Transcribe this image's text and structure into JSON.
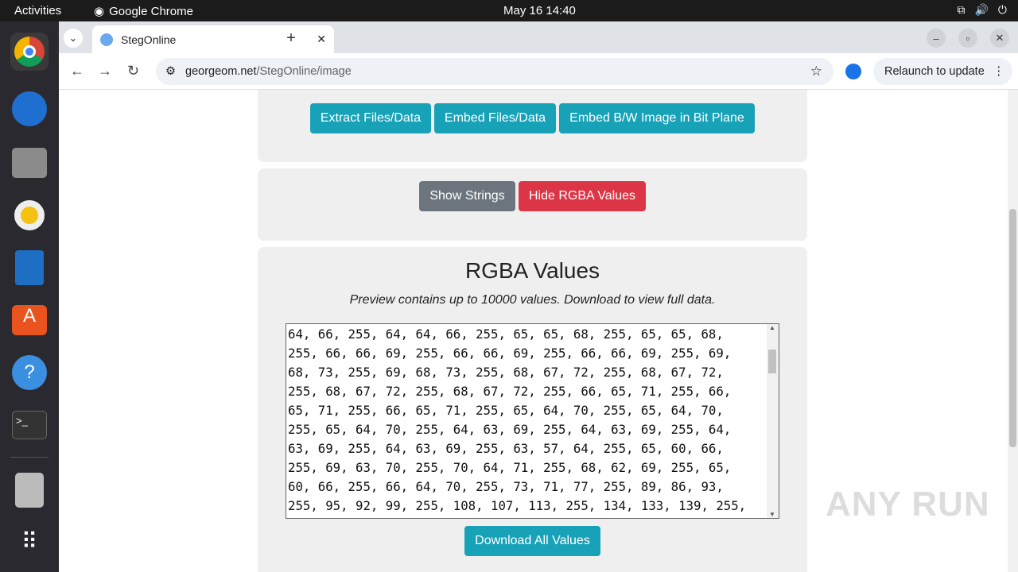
{
  "system": {
    "activities": "Activities",
    "app_name": "Google Chrome",
    "clock": "May 16  14:40"
  },
  "dock": {
    "items": [
      "chrome",
      "thunderbird",
      "files",
      "rhythmbox",
      "writer",
      "app-center",
      "help",
      "terminal",
      "archive",
      "app-grid"
    ]
  },
  "browser": {
    "tab_title": "StegOnline",
    "url_host": "georgeom.net",
    "url_path": "/StegOnline/image",
    "relaunch": "Relaunch to update"
  },
  "page": {
    "extract_btn": "Extract Files/Data",
    "embed_btn": "Embed Files/Data",
    "embed_bw_btn": "Embed B/W Image in Bit Plane",
    "show_strings_btn": "Show Strings",
    "hide_rgba_btn": "Hide RGBA Values",
    "rgba_title": "RGBA Values",
    "rgba_note": "Preview contains up to 10000 values. Download to view full data.",
    "rgba_lines": [
      "64, 66, 255, 64, 64, 66, 255, 65, 65, 68, 255, 65, 65, 68,",
      "255, 66, 66, 69, 255, 66, 66, 69, 255, 66, 66, 69, 255, 69,",
      "68, 73, 255, 69, 68, 73, 255, 68, 67, 72, 255, 68, 67, 72,",
      "255, 68, 67, 72, 255, 68, 67, 72, 255, 66, 65, 71, 255, 66,",
      "65, 71, 255, 66, 65, 71, 255, 65, 64, 70, 255, 65, 64, 70,",
      "255, 65, 64, 70, 255, 64, 63, 69, 255, 64, 63, 69, 255, 64,",
      "63, 69, 255, 64, 63, 69, 255, 63, 57, 64, 255, 65, 60, 66,",
      "255, 69, 63, 70, 255, 70, 64, 71, 255, 68, 62, 69, 255, 65,",
      "60, 66, 255, 66, 64, 70, 255, 73, 71, 77, 255, 89, 86, 93,",
      "255, 95, 92, 99, 255, 108, 107, 113, 255, 134, 133, 139, 255,"
    ],
    "download_btn": "Download All Values"
  },
  "watermark": "ANY RUN",
  "colors": {
    "teal": "#17a2b8",
    "gray": "#6c757d",
    "red": "#dc3545"
  }
}
